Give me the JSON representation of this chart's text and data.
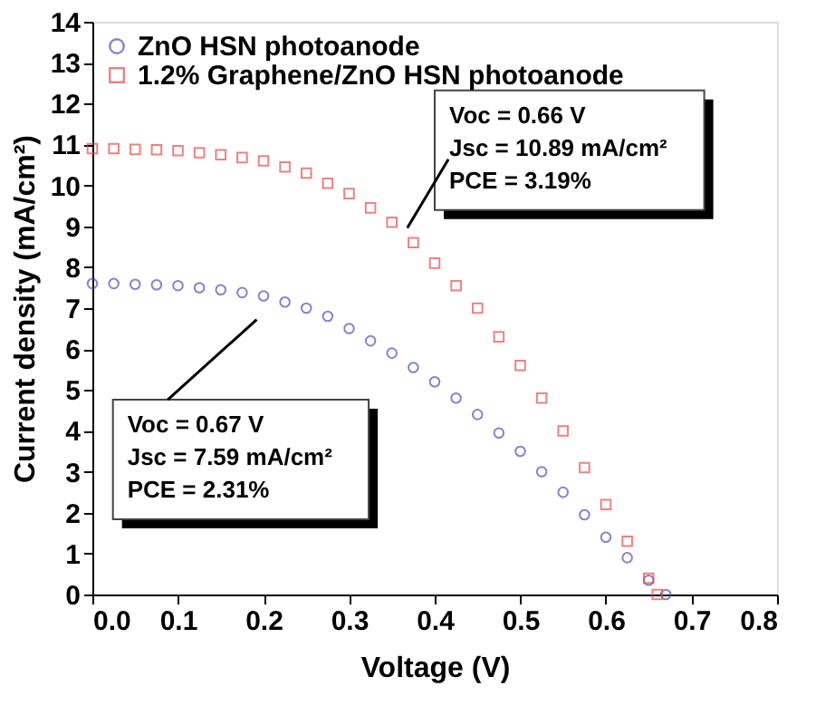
{
  "chart_data": {
    "type": "scatter",
    "xlabel": "Voltage (V)",
    "ylabel": "Current density (mA/cm²)",
    "x": [
      0,
      0.025,
      0.05,
      0.075,
      0.1,
      0.125,
      0.15,
      0.175,
      0.2,
      0.225,
      0.25,
      0.275,
      0.3,
      0.325,
      0.35,
      0.375,
      0.4,
      0.425,
      0.45,
      0.475,
      0.5,
      0.525,
      0.55,
      0.575,
      0.6,
      0.625,
      0.65,
      0.67
    ],
    "series": [
      {
        "name": "ZnO HSN photoanode",
        "color": "#5050b8",
        "marker": "circle",
        "values": [
          7.6,
          7.6,
          7.58,
          7.57,
          7.55,
          7.5,
          7.45,
          7.38,
          7.3,
          7.15,
          7.0,
          6.8,
          6.5,
          6.2,
          5.9,
          5.55,
          5.2,
          4.8,
          4.4,
          3.95,
          3.5,
          3.0,
          2.5,
          1.95,
          1.4,
          0.9,
          0.35,
          0
        ]
      },
      {
        "name": "1.2% Graphene/ZnO HSN photoanode",
        "color": "#e05050",
        "marker": "square",
        "x": [
          0,
          0.025,
          0.05,
          0.075,
          0.1,
          0.125,
          0.15,
          0.175,
          0.2,
          0.225,
          0.25,
          0.275,
          0.3,
          0.325,
          0.35,
          0.375,
          0.4,
          0.425,
          0.45,
          0.475,
          0.5,
          0.525,
          0.55,
          0.575,
          0.6,
          0.625,
          0.65,
          0.66
        ],
        "values": [
          10.9,
          10.9,
          10.88,
          10.87,
          10.85,
          10.8,
          10.75,
          10.68,
          10.6,
          10.45,
          10.3,
          10.05,
          9.8,
          9.45,
          9.1,
          8.6,
          8.1,
          7.55,
          7.0,
          6.3,
          5.6,
          4.8,
          4.0,
          3.1,
          2.2,
          1.3,
          0.4,
          0
        ]
      }
    ],
    "annotations": [
      "Voc = 0.66 V\nJsc = 10.89 mA/cm²\nPCE = 3.19%",
      "Voc = 0.67 V\nJsc = 7.59 mA/cm²\nPCE = 2.31%"
    ],
    "xlim": [
      0,
      0.8
    ],
    "xticks": [
      {
        "value": 0,
        "label": "0.0"
      },
      0.1,
      0.2,
      0.3,
      0.4,
      0.5,
      0.6,
      0.7,
      0.8
    ],
    "ylim": [
      0,
      14
    ],
    "yticks": [
      0,
      1,
      2,
      3,
      4,
      5,
      6,
      7,
      8,
      9,
      10,
      11,
      12,
      13,
      14
    ],
    "grid": false,
    "legend": "top left"
  }
}
